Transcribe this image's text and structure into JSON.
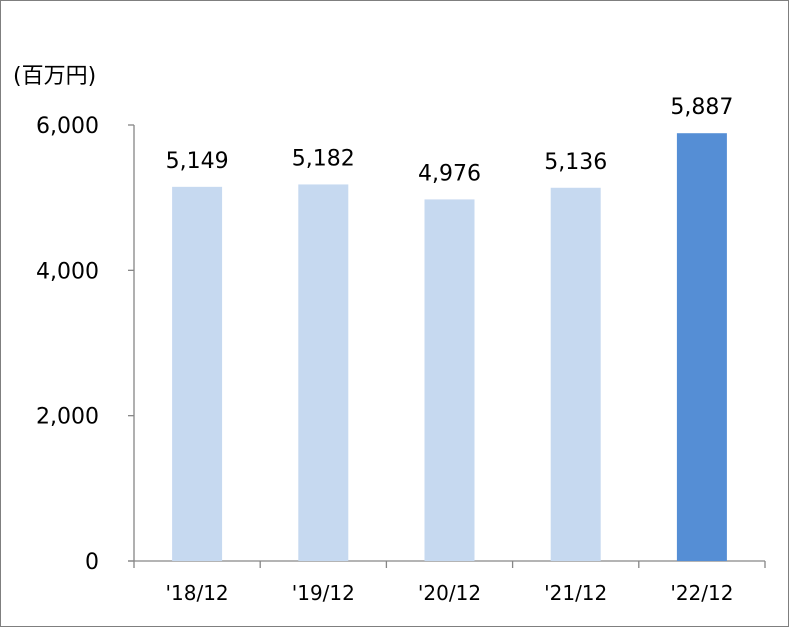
{
  "chart_data": {
    "type": "bar",
    "unit_label": "(百万円)",
    "categories": [
      "'18/12",
      "'19/12",
      "'20/12",
      "'21/12",
      "'22/12"
    ],
    "values": [
      5149,
      5182,
      4976,
      5136,
      5887
    ],
    "data_labels": [
      "5,149",
      "5,182",
      "4,976",
      "5,136",
      "5,887"
    ],
    "ylim": [
      0,
      6000
    ],
    "yticks": [
      0,
      2000,
      4000,
      6000
    ],
    "ytick_labels": [
      "0",
      "2,000",
      "4,000",
      "6,000"
    ],
    "grid": false,
    "bar_colors": [
      "#c6d9f0",
      "#c6d9f0",
      "#c6d9f0",
      "#c6d9f0",
      "#558ed5"
    ]
  }
}
